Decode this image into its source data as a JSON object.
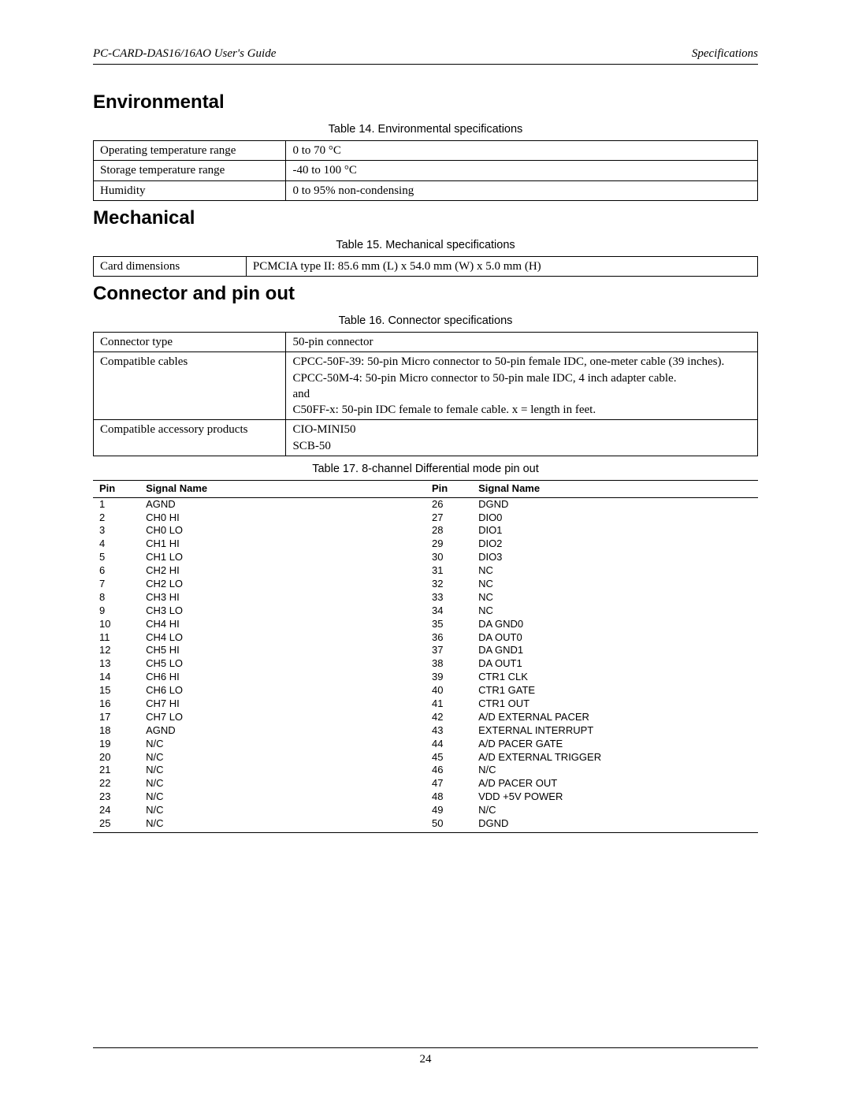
{
  "header": {
    "left": "PC-CARD-DAS16/16AO User's Guide",
    "right": "Specifications"
  },
  "sections": {
    "env": {
      "title": "Environmental",
      "caption": "Table 14. Environmental specifications",
      "rows": {
        "r1_label": "Operating temperature range",
        "r1_value": "0 to 70 °C",
        "r2_label": "Storage temperature range",
        "r2_value": "-40 to 100 °C",
        "r3_label": "Humidity",
        "r3_value": "0 to 95% non-condensing"
      }
    },
    "mech": {
      "title": "Mechanical",
      "caption": "Table 15. Mechanical specifications",
      "rows": {
        "r1_label": "Card dimensions",
        "r1_value": "PCMCIA type II: 85.6 mm (L) x 54.0 mm (W) x 5.0 mm (H)"
      }
    },
    "conn": {
      "title": "Connector and pin out",
      "caption16": "Table 16. Connector specifications",
      "rows": {
        "r1_label": "Connector type",
        "r1_value": "50-pin connector",
        "r2_label": "Compatible cables",
        "r2_l1": "CPCC-50F-39: 50-pin Micro connector to 50-pin female IDC, one-meter cable (39 inches).",
        "r2_l2": "CPCC-50M-4: 50-pin Micro connector to 50-pin male IDC, 4 inch adapter cable.",
        "r2_l3": "and",
        "r2_l4": "C50FF-x: 50-pin IDC female to female cable. x = length in feet.",
        "r3_label": "Compatible accessory products",
        "r3_l1": "CIO-MINI50",
        "r3_l2": "SCB-50"
      },
      "caption17": "Table 17. 8-channel Differential mode pin out",
      "pin_header": {
        "pin": "Pin",
        "sig": "Signal Name"
      },
      "pins_left": [
        {
          "p": "1",
          "s": "AGND"
        },
        {
          "p": "2",
          "s": "CH0 HI"
        },
        {
          "p": "3",
          "s": "CH0 LO"
        },
        {
          "p": "4",
          "s": "CH1 HI"
        },
        {
          "p": "5",
          "s": "CH1 LO"
        },
        {
          "p": "6",
          "s": "CH2 HI"
        },
        {
          "p": "7",
          "s": "CH2 LO"
        },
        {
          "p": "8",
          "s": "CH3 HI"
        },
        {
          "p": "9",
          "s": "CH3 LO"
        },
        {
          "p": "10",
          "s": "CH4 HI"
        },
        {
          "p": "11",
          "s": "CH4 LO"
        },
        {
          "p": "12",
          "s": "CH5 HI"
        },
        {
          "p": "13",
          "s": "CH5 LO"
        },
        {
          "p": "14",
          "s": "CH6 HI"
        },
        {
          "p": "15",
          "s": "CH6 LO"
        },
        {
          "p": "16",
          "s": "CH7 HI"
        },
        {
          "p": "17",
          "s": "CH7 LO"
        },
        {
          "p": "18",
          "s": "AGND"
        },
        {
          "p": "19",
          "s": "N/C"
        },
        {
          "p": "20",
          "s": "N/C"
        },
        {
          "p": "21",
          "s": "N/C"
        },
        {
          "p": "22",
          "s": "N/C"
        },
        {
          "p": "23",
          "s": "N/C"
        },
        {
          "p": "24",
          "s": "N/C"
        },
        {
          "p": "25",
          "s": "N/C"
        }
      ],
      "pins_right": [
        {
          "p": "26",
          "s": "DGND"
        },
        {
          "p": "27",
          "s": "DIO0"
        },
        {
          "p": "28",
          "s": "DIO1"
        },
        {
          "p": "29",
          "s": "DIO2"
        },
        {
          "p": "30",
          "s": "DIO3"
        },
        {
          "p": "31",
          "s": "NC"
        },
        {
          "p": "32",
          "s": "NC"
        },
        {
          "p": "33",
          "s": "NC"
        },
        {
          "p": "34",
          "s": "NC"
        },
        {
          "p": "35",
          "s": "DA GND0"
        },
        {
          "p": "36",
          "s": "DA OUT0"
        },
        {
          "p": "37",
          "s": "DA GND1"
        },
        {
          "p": "38",
          "s": "DA OUT1"
        },
        {
          "p": "39",
          "s": "CTR1 CLK"
        },
        {
          "p": "40",
          "s": "CTR1 GATE"
        },
        {
          "p": "41",
          "s": "CTR1 OUT"
        },
        {
          "p": "42",
          "s": "A/D EXTERNAL PACER"
        },
        {
          "p": "43",
          "s": "EXTERNAL INTERRUPT"
        },
        {
          "p": "44",
          "s": "A/D PACER GATE"
        },
        {
          "p": "45",
          "s": "A/D EXTERNAL TRIGGER"
        },
        {
          "p": "46",
          "s": "N/C"
        },
        {
          "p": "47",
          "s": "A/D PACER OUT"
        },
        {
          "p": "48",
          "s": "VDD +5V POWER"
        },
        {
          "p": "49",
          "s": "N/C"
        },
        {
          "p": "50",
          "s": "DGND"
        }
      ]
    }
  },
  "page_number": "24"
}
